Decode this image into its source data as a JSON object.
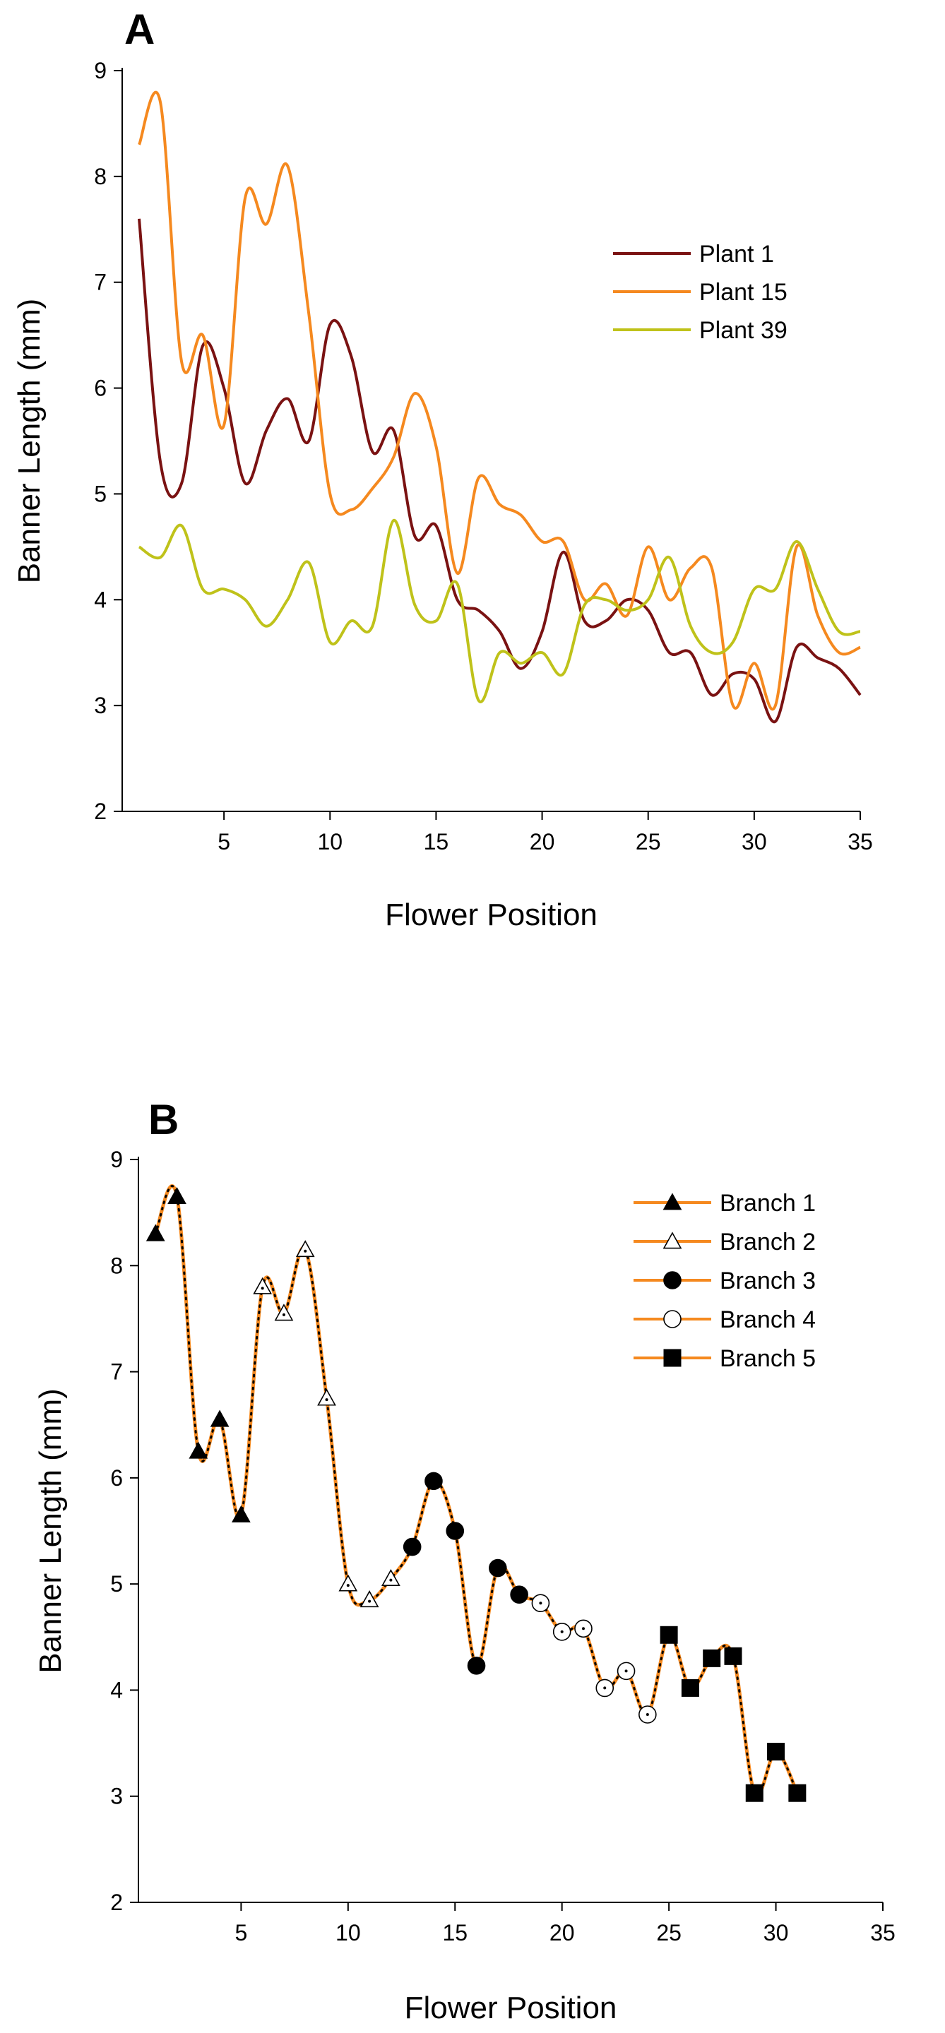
{
  "chart_data": [
    {
      "panel_label": "A",
      "type": "line",
      "xlabel": "Flower Position",
      "ylabel": "Banner Length (mm)",
      "xlim": [
        0.2,
        35
      ],
      "ylim": [
        2,
        9
      ],
      "xticks": [
        5,
        10,
        15,
        20,
        25,
        30,
        35
      ],
      "yticks": [
        2,
        3,
        4,
        5,
        6,
        7,
        8,
        9
      ],
      "grid": false,
      "legend_position": "top-right",
      "series": [
        {
          "name": "Plant 1",
          "color": "#7a1212",
          "x": [
            1,
            2,
            3,
            4,
            5,
            6,
            7,
            8,
            9,
            10,
            11,
            12,
            13,
            14,
            15,
            16,
            17,
            18,
            19,
            20,
            21,
            22,
            23,
            24,
            25,
            26,
            27,
            28,
            29,
            30,
            31,
            32,
            33,
            34,
            35
          ],
          "values": [
            7.6,
            5.3,
            5.1,
            6.4,
            6.0,
            5.1,
            5.6,
            5.9,
            5.5,
            6.6,
            6.3,
            5.4,
            5.6,
            4.6,
            4.7,
            4.0,
            3.9,
            3.7,
            3.35,
            3.7,
            4.45,
            3.8,
            3.8,
            4.0,
            3.9,
            3.5,
            3.5,
            3.1,
            3.3,
            3.25,
            2.85,
            3.55,
            3.45,
            3.35,
            3.1
          ]
        },
        {
          "name": "Plant 15",
          "color": "#f5891f",
          "x": [
            1,
            2,
            3,
            4,
            5,
            6,
            7,
            8,
            9,
            10,
            11,
            12,
            13,
            14,
            15,
            16,
            17,
            18,
            19,
            20,
            21,
            22,
            23,
            24,
            25,
            26,
            27,
            28,
            29,
            30,
            31,
            32,
            33,
            34,
            35
          ],
          "values": [
            8.3,
            8.7,
            6.25,
            6.5,
            5.65,
            7.8,
            7.55,
            8.1,
            6.7,
            5.0,
            4.85,
            5.05,
            5.35,
            5.95,
            5.45,
            4.25,
            5.15,
            4.9,
            4.8,
            4.55,
            4.55,
            4.0,
            4.15,
            3.85,
            4.5,
            4.0,
            4.3,
            4.3,
            3.0,
            3.4,
            3.0,
            4.5,
            3.85,
            3.5,
            3.55
          ]
        },
        {
          "name": "Plant 39",
          "color": "#bfc21a",
          "x": [
            1,
            2,
            3,
            4,
            5,
            6,
            7,
            8,
            9,
            10,
            11,
            12,
            13,
            14,
            15,
            16,
            17,
            18,
            19,
            20,
            21,
            22,
            23,
            24,
            25,
            26,
            27,
            28,
            29,
            30,
            31,
            32,
            33,
            34,
            35
          ],
          "values": [
            4.5,
            4.4,
            4.7,
            4.1,
            4.1,
            4.0,
            3.75,
            4.0,
            4.35,
            3.6,
            3.8,
            3.75,
            4.75,
            3.95,
            3.8,
            4.15,
            3.05,
            3.5,
            3.4,
            3.5,
            3.3,
            3.95,
            4.0,
            3.9,
            4.0,
            4.4,
            3.75,
            3.5,
            3.6,
            4.1,
            4.1,
            4.55,
            4.1,
            3.7,
            3.7
          ]
        }
      ]
    },
    {
      "panel_label": "B",
      "type": "line",
      "xlabel": "Flower Position",
      "ylabel": "Banner Length (mm)",
      "xlim": [
        0.2,
        35
      ],
      "ylim": [
        2,
        9
      ],
      "xticks": [
        5,
        10,
        15,
        20,
        25,
        30,
        35
      ],
      "yticks": [
        2,
        3,
        4,
        5,
        6,
        7,
        8,
        9
      ],
      "grid": false,
      "legend_position": "top-right",
      "line_color": "#f5891f",
      "connector_style": "dotted",
      "series": [
        {
          "name": "Branch 1",
          "marker": "triangle-filled",
          "x": [
            1,
            2,
            3,
            4,
            5
          ],
          "values": [
            8.3,
            8.65,
            6.25,
            6.55,
            5.65
          ]
        },
        {
          "name": "Branch 2",
          "marker": "triangle-open",
          "x": [
            6,
            7,
            8,
            9,
            10,
            11,
            12
          ],
          "values": [
            7.8,
            7.55,
            8.15,
            6.75,
            5.0,
            4.85,
            5.05
          ]
        },
        {
          "name": "Branch 3",
          "marker": "circle-filled",
          "x": [
            13,
            14,
            15,
            16,
            17,
            18
          ],
          "values": [
            5.35,
            5.97,
            5.5,
            4.23,
            5.15,
            4.9
          ]
        },
        {
          "name": "Branch 4",
          "marker": "circle-open",
          "x": [
            19,
            20,
            21,
            22,
            23,
            24
          ],
          "values": [
            4.82,
            4.55,
            4.58,
            4.02,
            4.18,
            3.77
          ]
        },
        {
          "name": "Branch 5",
          "marker": "square-filled",
          "x": [
            25,
            26,
            27,
            28,
            29,
            30,
            31
          ],
          "values": [
            4.52,
            4.02,
            4.3,
            4.32,
            3.03,
            3.42,
            3.03
          ]
        }
      ]
    }
  ]
}
